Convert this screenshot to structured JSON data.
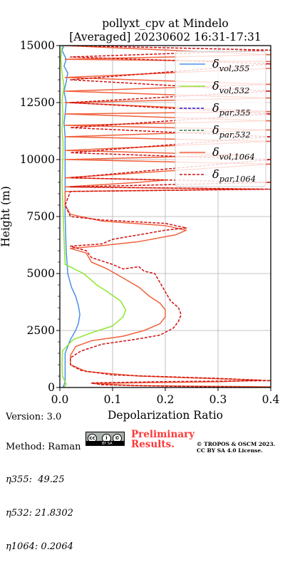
{
  "chart_data": {
    "type": "line",
    "title_line1": "pollyxt_cpv at Mindelo",
    "title_line2": "[Averaged] 20230602 16:31-17:31",
    "xlabel": "Depolarization Ratio",
    "ylabel": "Height (m)",
    "xlim": [
      0.0,
      0.4
    ],
    "ylim": [
      0,
      15000
    ],
    "x_ticks": [
      "0.0",
      "0.1",
      "0.2",
      "0.3",
      "0.4"
    ],
    "y_ticks": [
      "0",
      "2500",
      "5000",
      "7500",
      "10000",
      "12500",
      "15000"
    ],
    "grid": true,
    "legend_position": "top-right",
    "series": [
      {
        "name": "δvol,355",
        "legend_main": "δ",
        "legend_sub": "vol,355",
        "color": "#4a90e8",
        "dash": "solid",
        "points": [
          [
            0.006,
            0
          ],
          [
            0.01,
            250
          ],
          [
            0.01,
            800
          ],
          [
            0.01,
            1500
          ],
          [
            0.02,
            2100
          ],
          [
            0.03,
            2500
          ],
          [
            0.035,
            2800
          ],
          [
            0.038,
            3200
          ],
          [
            0.035,
            3600
          ],
          [
            0.03,
            4000
          ],
          [
            0.022,
            4400
          ],
          [
            0.015,
            5000
          ],
          [
            0.012,
            6000
          ],
          [
            0.01,
            7500
          ],
          [
            0.01,
            9000
          ],
          [
            0.01,
            10200
          ],
          [
            0.01,
            11000
          ],
          [
            0.008,
            11600
          ],
          [
            0.01,
            12000
          ],
          [
            0.012,
            12500
          ],
          [
            0.008,
            13000
          ],
          [
            0.012,
            13400
          ],
          [
            0.015,
            13800
          ],
          [
            0.008,
            14100
          ],
          [
            0.012,
            14400
          ],
          [
            0.004,
            14800
          ],
          [
            0.008,
            15000
          ]
        ]
      },
      {
        "name": "δvol,532",
        "legend_main": "δ",
        "legend_sub": "vol,532",
        "color": "#8fe830",
        "dash": "solid",
        "points": [
          [
            0.008,
            0
          ],
          [
            0.012,
            150
          ],
          [
            0.01,
            250
          ],
          [
            0.005,
            500
          ],
          [
            0.004,
            1000
          ],
          [
            0.005,
            1600
          ],
          [
            0.025,
            2100
          ],
          [
            0.06,
            2400
          ],
          [
            0.1,
            2700
          ],
          [
            0.12,
            3100
          ],
          [
            0.125,
            3400
          ],
          [
            0.115,
            3800
          ],
          [
            0.09,
            4200
          ],
          [
            0.07,
            4500
          ],
          [
            0.045,
            5000
          ],
          [
            0.01,
            5400
          ],
          [
            0.008,
            6500
          ],
          [
            0.006,
            7800
          ],
          [
            0.004,
            9000
          ],
          [
            0.006,
            10200
          ],
          [
            0.006,
            10800
          ],
          [
            0.004,
            11300
          ],
          [
            0.006,
            12000
          ],
          [
            0.004,
            12600
          ],
          [
            0.008,
            13200
          ],
          [
            0.004,
            13800
          ],
          [
            0.002,
            14400
          ],
          [
            0.004,
            15000
          ]
        ]
      },
      {
        "name": "δpar,355",
        "legend_main": "δ",
        "legend_sub": "par,355",
        "color": "#1a1adc",
        "dash": "dashed",
        "points": []
      },
      {
        "name": "δpar,532",
        "legend_main": "δ",
        "legend_sub": "par,532",
        "color": "#2e7d4a",
        "dash": "dashed",
        "points": []
      },
      {
        "name": "δvol,1064",
        "legend_main": "δ",
        "legend_sub": "vol,1064",
        "color": "#f2613d",
        "dash": "solid",
        "points": [
          [
            0.4,
            30
          ],
          [
            0.14,
            80
          ],
          [
            0.06,
            180
          ],
          [
            0.3,
            250
          ],
          [
            0.38,
            320
          ],
          [
            0.15,
            500
          ],
          [
            0.05,
            700
          ],
          [
            0.02,
            1000
          ],
          [
            0.02,
            1400
          ],
          [
            0.03,
            1800
          ],
          [
            0.06,
            2050
          ],
          [
            0.12,
            2250
          ],
          [
            0.16,
            2500
          ],
          [
            0.19,
            2800
          ],
          [
            0.2,
            3100
          ],
          [
            0.2,
            3400
          ],
          [
            0.19,
            3700
          ],
          [
            0.17,
            4000
          ],
          [
            0.15,
            4400
          ],
          [
            0.12,
            4800
          ],
          [
            0.09,
            5200
          ],
          [
            0.06,
            5500
          ],
          [
            0.05,
            5900
          ],
          [
            0.02,
            6100
          ],
          [
            0.07,
            6200
          ],
          [
            0.15,
            6400
          ],
          [
            0.22,
            6700
          ],
          [
            0.24,
            6900
          ],
          [
            0.2,
            7100
          ],
          [
            0.08,
            7300
          ],
          [
            0.02,
            7600
          ],
          [
            0.01,
            8000
          ],
          [
            0.01,
            8600
          ],
          [
            0.38,
            8700
          ],
          [
            0.01,
            8800
          ],
          [
            0.15,
            9000
          ],
          [
            0.2,
            9100
          ],
          [
            0.01,
            9200
          ],
          [
            0.4,
            9800
          ],
          [
            0.01,
            10000
          ],
          [
            0.35,
            10200
          ],
          [
            0.01,
            10400
          ],
          [
            0.4,
            10800
          ],
          [
            0.01,
            11000
          ],
          [
            0.4,
            11300
          ],
          [
            0.01,
            11500
          ],
          [
            0.4,
            11700
          ],
          [
            0.01,
            12000
          ],
          [
            0.4,
            12100
          ],
          [
            0.01,
            12500
          ],
          [
            0.4,
            12700
          ],
          [
            0.01,
            13000
          ],
          [
            0.4,
            13300
          ],
          [
            0.01,
            13600
          ],
          [
            0.4,
            14000
          ],
          [
            0.4,
            14300
          ],
          [
            0.01,
            14400
          ],
          [
            0.4,
            14600
          ],
          [
            0.01,
            15000
          ]
        ]
      },
      {
        "name": "δpar,1064",
        "legend_main": "δ",
        "legend_sub": "par,1064",
        "color": "#d01010",
        "dash": "dashed",
        "points": [
          [
            0.4,
            0
          ],
          [
            0.2,
            60
          ],
          [
            0.08,
            120
          ],
          [
            0.06,
            200
          ],
          [
            0.2,
            260
          ],
          [
            0.4,
            300
          ],
          [
            0.3,
            400
          ],
          [
            0.1,
            550
          ],
          [
            0.04,
            750
          ],
          [
            0.02,
            1000
          ],
          [
            0.02,
            1300
          ],
          [
            0.04,
            1600
          ],
          [
            0.08,
            1900
          ],
          [
            0.14,
            2100
          ],
          [
            0.19,
            2300
          ],
          [
            0.215,
            2600
          ],
          [
            0.225,
            2900
          ],
          [
            0.23,
            3200
          ],
          [
            0.225,
            3500
          ],
          [
            0.21,
            3800
          ],
          [
            0.2,
            4200
          ],
          [
            0.19,
            4600
          ],
          [
            0.18,
            5000
          ],
          [
            0.16,
            5100
          ],
          [
            0.15,
            5300
          ],
          [
            0.12,
            5200
          ],
          [
            0.1,
            5400
          ],
          [
            0.06,
            5700
          ],
          [
            0.05,
            6000
          ],
          [
            0.02,
            6200
          ],
          [
            0.08,
            6300
          ],
          [
            0.1,
            6500
          ],
          [
            0.15,
            6700
          ],
          [
            0.2,
            6900
          ],
          [
            0.24,
            7000
          ],
          [
            0.2,
            7200
          ],
          [
            0.08,
            7350
          ],
          [
            0.02,
            7500
          ],
          [
            0.01,
            8000
          ],
          [
            0.02,
            8600
          ],
          [
            0.4,
            8700
          ],
          [
            0.02,
            8800
          ],
          [
            0.4,
            9000
          ],
          [
            0.02,
            9200
          ],
          [
            0.4,
            10000
          ],
          [
            0.02,
            10300
          ],
          [
            0.4,
            11000
          ],
          [
            0.02,
            11400
          ],
          [
            0.4,
            12000
          ],
          [
            0.02,
            12500
          ],
          [
            0.4,
            13000
          ],
          [
            0.02,
            13500
          ],
          [
            0.4,
            14200
          ],
          [
            0.02,
            14500
          ],
          [
            0.4,
            14800
          ],
          [
            0.02,
            15000
          ]
        ]
      }
    ]
  },
  "info": {
    "version": "Version: 3.0",
    "method": "Method: Raman",
    "eta355": "η355:  49.25",
    "eta532": "η532: 21.8302",
    "eta1064": "η1064: 0.2064"
  },
  "footer": {
    "preliminary_line1": "Preliminary",
    "preliminary_line2": "Results.",
    "tropos_line1": "© TROPOS & OSCM 2023.",
    "tropos_line2": "CC BY SA 4.0 License.",
    "cc_symbols": [
      "cc",
      "i",
      "©"
    ],
    "cc_band": "BY   SA"
  }
}
